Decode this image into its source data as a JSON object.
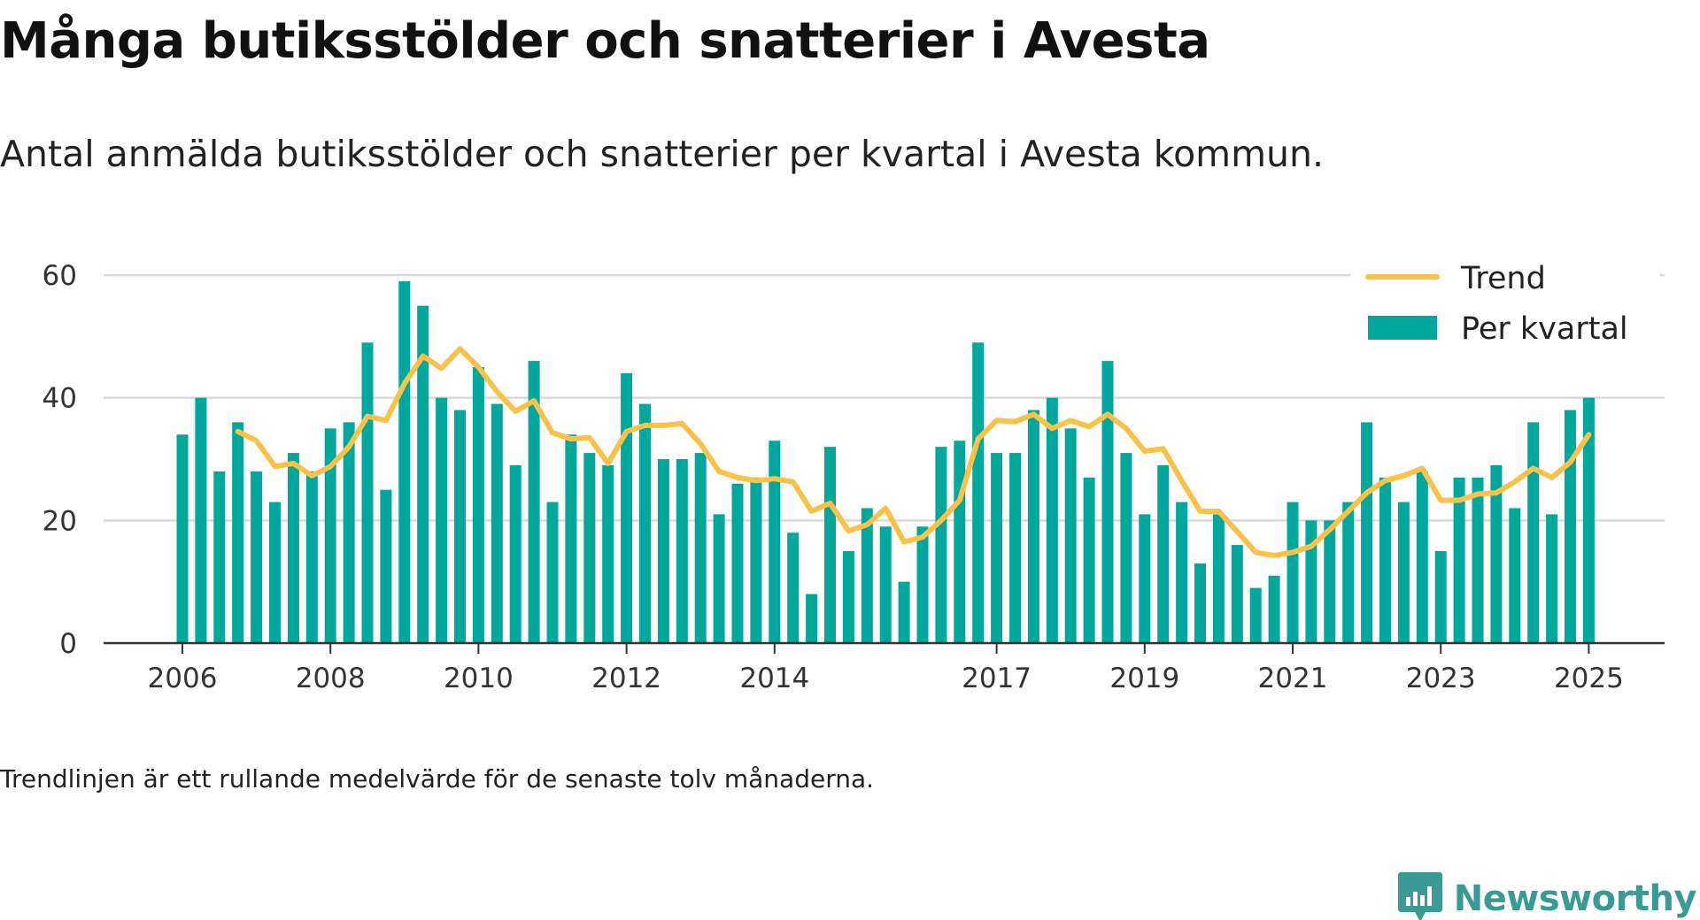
{
  "title": "Många butiksstölder och snatterier i Avesta",
  "subtitle": "Antal anmälda butiksstölder och snatterier per kvartal i Avesta kommun.",
  "footnote": "Trendlinjen är ett rullande medelvärde för de senaste tolv månaderna.",
  "brand": {
    "name": "Newsworthy",
    "icon": "newsworthy-logo-icon"
  },
  "colors": {
    "bar": "#00a79d",
    "trend": "#fbc24a",
    "grid": "#d9d9d9",
    "axis": "#333333",
    "brand": "#3a9a94"
  },
  "chart_data": {
    "type": "bar",
    "x_unit": "quarter",
    "x_start": "2006 Q1",
    "x_tick_labels": [
      "2006",
      "2008",
      "2010",
      "2012",
      "2014",
      "2017",
      "2019",
      "2021",
      "2023",
      "2025"
    ],
    "y_ticks": [
      0,
      20,
      40,
      60
    ],
    "ylim": [
      0,
      60
    ],
    "grid": true,
    "legend_position": "top-right",
    "series": [
      {
        "name": "Per kvartal",
        "type": "bar",
        "values": [
          34,
          40,
          28,
          36,
          28,
          23,
          31,
          28,
          35,
          36,
          49,
          25,
          59,
          55,
          40,
          38,
          45,
          39,
          29,
          46,
          23,
          34,
          31,
          29,
          44,
          39,
          30,
          30,
          31,
          21,
          26,
          27,
          33,
          18,
          8,
          32,
          15,
          22,
          19,
          10,
          19,
          32,
          33,
          49,
          31,
          31,
          38,
          40,
          35,
          27,
          46,
          31,
          21,
          29,
          23,
          13,
          21,
          16,
          9,
          11,
          23,
          20,
          20,
          23,
          36,
          27,
          23,
          28,
          15,
          27,
          27,
          29,
          22,
          36,
          21,
          38,
          40
        ]
      },
      {
        "name": "Trend",
        "type": "line",
        "start_index": 3,
        "values": [
          34.5,
          33,
          28.8,
          29.3,
          27.3,
          28.8,
          32,
          37,
          36.3,
          42.3,
          46.8,
          44.8,
          48.0,
          45,
          41,
          37.8,
          39.5,
          34.3,
          33.3,
          33.5,
          29.3,
          34.5,
          35.5,
          35.5,
          35.8,
          32.5,
          28,
          27,
          26.5,
          26.8,
          26.3,
          21.5,
          22.8,
          18.3,
          19.3,
          22,
          16.5,
          17.3,
          20,
          23.3,
          33.3,
          36.3,
          36.1,
          37.3,
          35,
          36.3,
          35.3,
          37.3,
          35,
          31.3,
          31.7,
          26.5,
          21.5,
          21.5,
          18.2,
          14.8,
          14.3,
          14.8,
          15.8,
          18.5,
          21.5,
          24.5,
          26.5,
          27.3,
          28.5,
          23.3,
          23.3,
          24.3,
          24.5,
          26.3,
          28.5,
          27,
          29.5,
          34
        ]
      }
    ]
  }
}
